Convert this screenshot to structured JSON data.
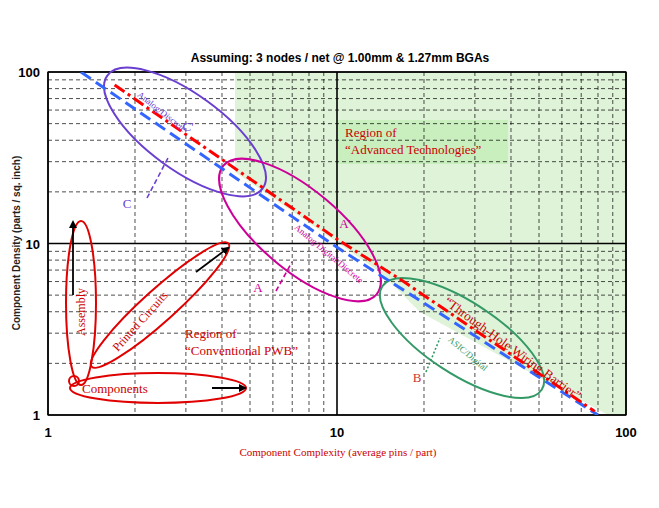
{
  "chart_data": {
    "type": "line",
    "title": "Assuming: 3 nodes / net @ 1.00mm & 1.27mm BGAs",
    "x_label": "Component Complexity (average pins / part)",
    "y_label": "Component Density (parts / sq. inch)",
    "log": true,
    "grid": true,
    "xlim": [
      1,
      100
    ],
    "ylim": [
      1,
      100
    ],
    "xticks": [
      1,
      10,
      100
    ],
    "yticks": [
      1,
      10,
      100
    ],
    "series": [
      {
        "color": "#3366ff",
        "line_style": "dashed",
        "x": [
          1.3,
          10,
          80
        ],
        "values": [
          100,
          9.5,
          1
        ]
      },
      {
        "color": "#ff0000",
        "line_style": "dashdot",
        "x": [
          1.7,
          10,
          17,
          78
        ],
        "values": [
          84,
          10.6,
          6,
          1.05
        ]
      }
    ],
    "annotations": [
      {
        "text": [
          "Region of",
          "“Advanced Technologies”"
        ]
      },
      {
        "text": [
          "Region of",
          "“Conventional PWB”"
        ]
      },
      {
        "text": "“Through-Hole  Wiring  Barrier”"
      },
      {
        "text": "Analog/Discrete"
      },
      {
        "text": "Analog/Digital/Discrete"
      },
      {
        "text": "ASIC/Digital"
      },
      {
        "text": "Assembly"
      },
      {
        "text": "Printed  Circuits"
      },
      {
        "text": "Components"
      },
      {
        "text": "A"
      },
      {
        "text": "A'"
      },
      {
        "text": "B"
      },
      {
        "text": "C"
      },
      {
        "text": "C'"
      }
    ]
  }
}
